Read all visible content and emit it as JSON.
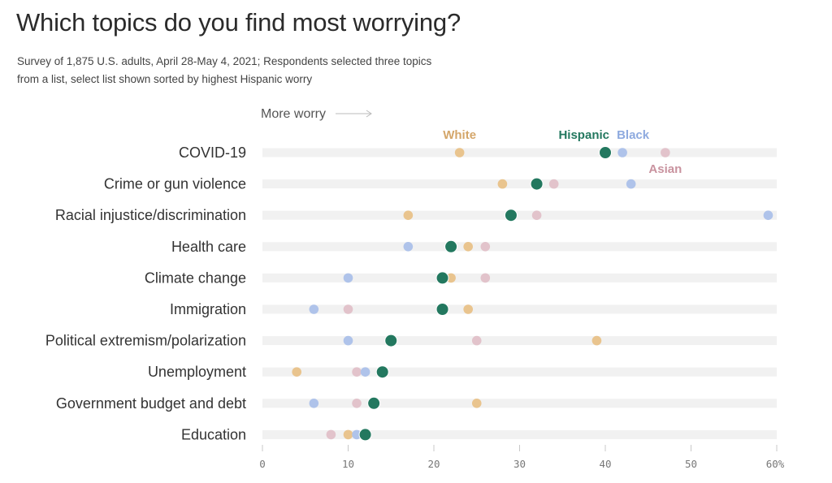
{
  "header": {
    "title": "Which topics do you find most worrying?",
    "subtitle_line1": "Survey of 1,875 U.S. adults, April 28-May 4, 2021; Respondents selected three topics",
    "subtitle_line2": "from a list, select list shown sorted by highest Hispanic worry"
  },
  "chart_data": {
    "type": "scatter",
    "direction_label": "More worry",
    "categories": [
      "COVID-19",
      "Crime or gun violence",
      "Racial injustice/discrimination",
      "Health care",
      "Climate change",
      "Immigration",
      "Political extremism/polarization",
      "Unemployment",
      "Government budget and debt",
      "Education"
    ],
    "series": [
      {
        "name": "White",
        "color": "#e9c48e",
        "label_color": "#d4a66a",
        "values": [
          23,
          28,
          17,
          24,
          22,
          24,
          39,
          4,
          25,
          10
        ]
      },
      {
        "name": "Asian",
        "color": "#e2c3cb",
        "label_color": "#c9939f",
        "values": [
          47,
          34,
          32,
          26,
          26,
          10,
          25,
          11,
          11,
          8
        ]
      },
      {
        "name": "Black",
        "color": "#afc3ea",
        "label_color": "#8eaadf",
        "values": [
          42,
          43,
          59,
          17,
          10,
          6,
          10,
          12,
          6,
          11
        ]
      },
      {
        "name": "Hispanic",
        "color": "#23785f",
        "label_color": "#23785f",
        "values": [
          40,
          32,
          29,
          22,
          21,
          21,
          15,
          14,
          13,
          12
        ]
      }
    ],
    "x_ticks": [
      "0",
      "10",
      "20",
      "30",
      "40",
      "50",
      "60%"
    ],
    "xlim": [
      0,
      60
    ],
    "grid": false,
    "legend": "inline labels above COVID-19 row"
  }
}
